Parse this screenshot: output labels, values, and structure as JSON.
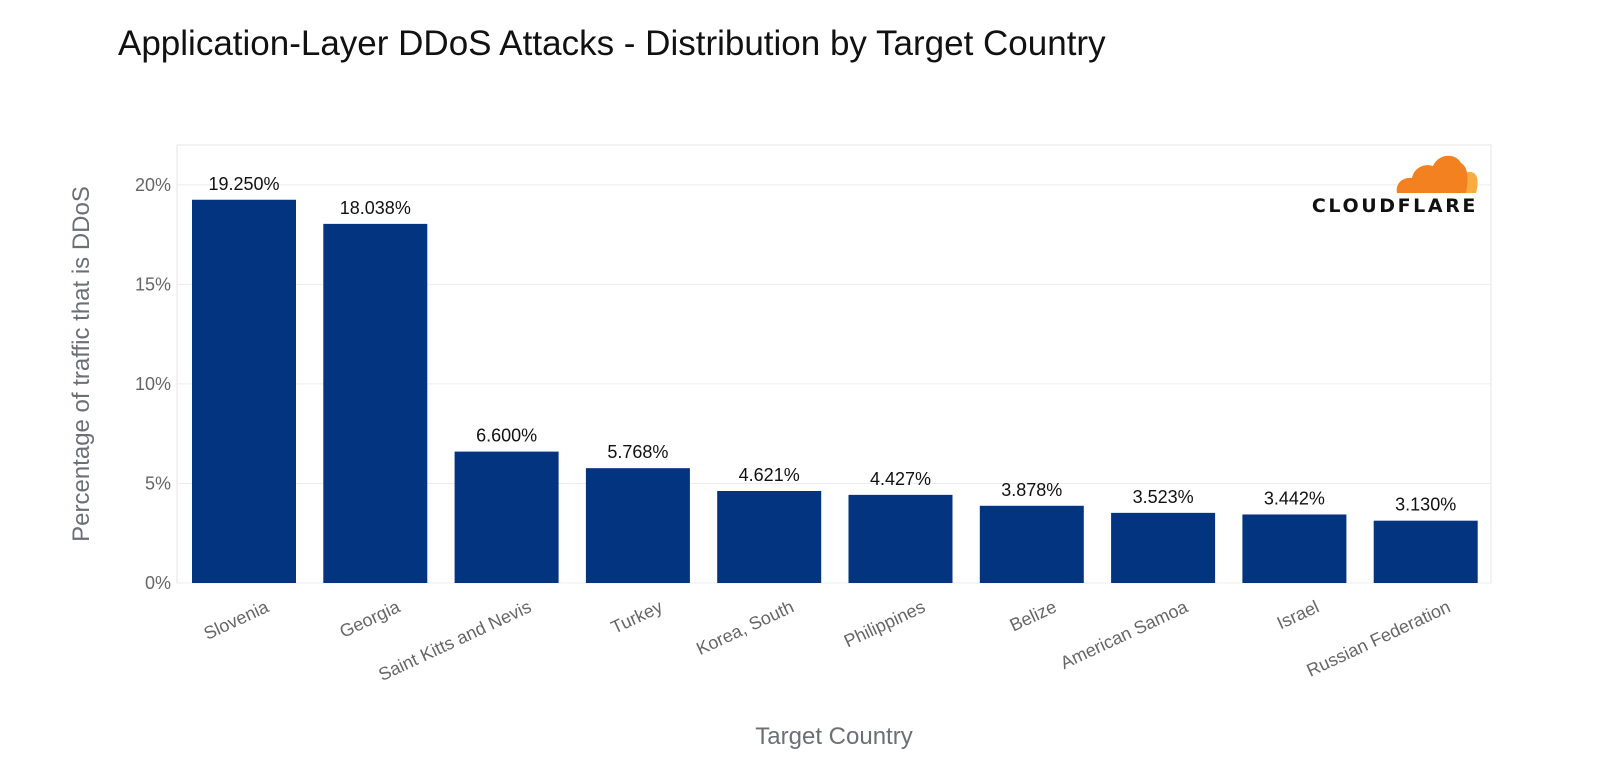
{
  "chart_data": {
    "type": "bar",
    "title": "Application-Layer DDoS Attacks - Distribution by Target Country",
    "xlabel": "Target Country",
    "ylabel": "Percentage of traffic that is DDoS",
    "ylim": [
      0,
      22
    ],
    "yticks": [
      0,
      5,
      10,
      15,
      20
    ],
    "ytick_labels": [
      "0%",
      "5%",
      "10%",
      "15%",
      "20%"
    ],
    "grid": true,
    "categories": [
      "Slovenia",
      "Georgia",
      "Saint Kitts and Nevis",
      "Turkey",
      "Korea, South",
      "Philippines",
      "Belize",
      "American Samoa",
      "Israel",
      "Russian Federation"
    ],
    "values": [
      19.25,
      18.038,
      6.6,
      5.768,
      4.621,
      4.427,
      3.878,
      3.523,
      3.442,
      3.13
    ],
    "data_labels": [
      "19.250%",
      "18.038%",
      "6.600%",
      "5.768%",
      "4.621%",
      "4.427%",
      "3.878%",
      "3.523%",
      "3.442%",
      "3.130%"
    ],
    "bar_color": "#02347f"
  },
  "logo": {
    "text": "CLOUDFLARE",
    "cloud_color_main": "#f48120",
    "cloud_color_light": "#faad3f"
  }
}
